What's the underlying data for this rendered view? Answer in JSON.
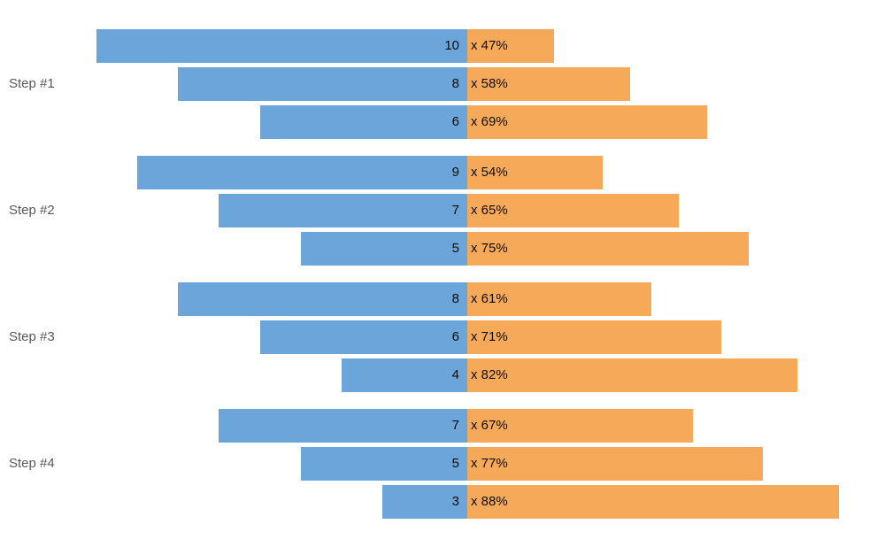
{
  "chart_data": {
    "type": "bar",
    "variant": "diverging-butterfly",
    "title": "",
    "background": "#ffffff",
    "grid": false,
    "legend": "none",
    "axes": "none",
    "bar_label_format": "{attempts} x {rate_pct}%",
    "bar_label_color": "#0d0d0d",
    "group_label_color": "#595959",
    "series": [
      {
        "name": "attempts",
        "direction": "left",
        "color": "#6CA5DA"
      },
      {
        "name": "success-rate",
        "direction": "right",
        "color": "#F7A95A"
      }
    ],
    "groups": [
      {
        "label": "Step #1",
        "bars": [
          {
            "attempts": 10,
            "rate_pct": 47,
            "count_label": "10",
            "rate_label": "x 47%"
          },
          {
            "attempts": 8,
            "rate_pct": 58,
            "count_label": "8",
            "rate_label": "x 58%"
          },
          {
            "attempts": 6,
            "rate_pct": 69,
            "count_label": "6",
            "rate_label": "x 69%"
          }
        ]
      },
      {
        "label": "Step #2",
        "bars": [
          {
            "attempts": 9,
            "rate_pct": 54,
            "count_label": "9",
            "rate_label": "x 54%"
          },
          {
            "attempts": 7,
            "rate_pct": 65,
            "count_label": "7",
            "rate_label": "x 65%"
          },
          {
            "attempts": 5,
            "rate_pct": 75,
            "count_label": "5",
            "rate_label": "x 75%"
          }
        ]
      },
      {
        "label": "Step #3",
        "bars": [
          {
            "attempts": 8,
            "rate_pct": 61,
            "count_label": "8",
            "rate_label": "x 61%"
          },
          {
            "attempts": 6,
            "rate_pct": 71,
            "count_label": "6",
            "rate_label": "x 71%"
          },
          {
            "attempts": 4,
            "rate_pct": 82,
            "count_label": "4",
            "rate_label": "x 82%"
          }
        ]
      },
      {
        "label": "Step #4",
        "bars": [
          {
            "attempts": 7,
            "rate_pct": 67,
            "count_label": "7",
            "rate_label": "x 67%"
          },
          {
            "attempts": 5,
            "rate_pct": 77,
            "count_label": "5",
            "rate_label": "x 77%"
          },
          {
            "attempts": 3,
            "rate_pct": 88,
            "count_label": "3",
            "rate_label": "x 88%"
          }
        ]
      }
    ]
  }
}
